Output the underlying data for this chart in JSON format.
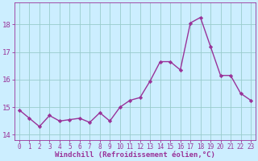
{
  "x": [
    0,
    1,
    2,
    3,
    4,
    5,
    6,
    7,
    8,
    9,
    10,
    11,
    12,
    13,
    14,
    15,
    16,
    17,
    18,
    19,
    20,
    21,
    22,
    23
  ],
  "y": [
    14.9,
    14.6,
    14.3,
    14.7,
    14.5,
    14.55,
    14.6,
    14.45,
    14.8,
    14.5,
    15.0,
    15.25,
    15.35,
    15.95,
    16.65,
    16.65,
    16.35,
    18.05,
    18.25,
    17.2,
    16.15,
    16.15,
    15.5,
    15.25
  ],
  "line_color": "#993399",
  "marker": "D",
  "marker_size": 2.2,
  "background_color": "#cceeff",
  "grid_color": "#99cccc",
  "xlabel": "Windchill (Refroidissement éolien,°C)",
  "ylabel": "",
  "ylim": [
    13.8,
    18.8
  ],
  "xlim": [
    -0.5,
    23.5
  ],
  "yticks": [
    14,
    15,
    16,
    17,
    18
  ],
  "xticks": [
    0,
    1,
    2,
    3,
    4,
    5,
    6,
    7,
    8,
    9,
    10,
    11,
    12,
    13,
    14,
    15,
    16,
    17,
    18,
    19,
    20,
    21,
    22,
    23
  ],
  "xtick_fontsize": 5.5,
  "ytick_fontsize": 6.5,
  "xlabel_fontsize": 6.5,
  "spine_color": "#993399",
  "tick_color": "#993399",
  "label_color": "#993399",
  "line_width": 1.0
}
